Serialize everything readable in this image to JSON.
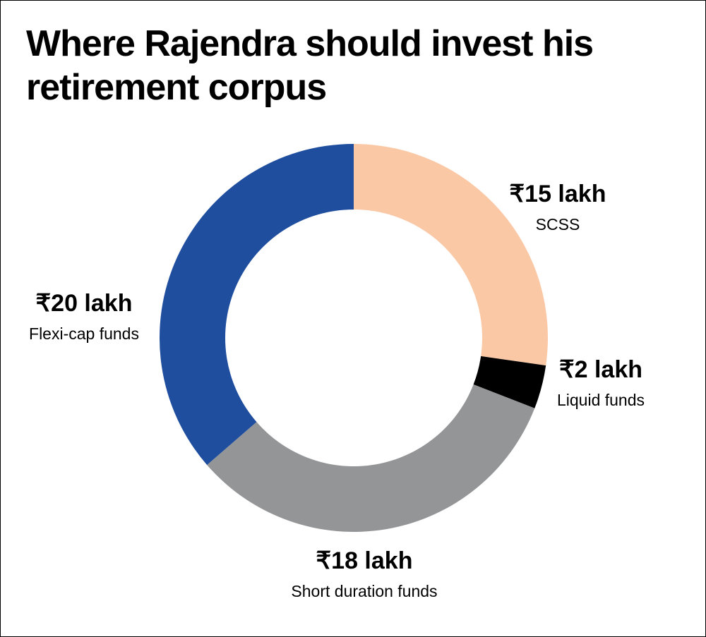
{
  "page": {
    "title": "Where Rajendra should invest his retirement corpus"
  },
  "chart_data": {
    "type": "pie",
    "title": "Where Rajendra should invest his retirement corpus",
    "unit": "lakh",
    "currency_symbol": "₹",
    "start_angle_deg": 0,
    "direction": "clockwise",
    "donut": true,
    "slices": [
      {
        "name": "SCSS",
        "value": 15,
        "value_label": "₹15 lakh",
        "color": "#fbc8a6"
      },
      {
        "name": "Liquid funds",
        "value": 2,
        "value_label": "₹2 lakh",
        "color": "#000000"
      },
      {
        "name": "Short duration funds",
        "value": 18,
        "value_label": "₹18 lakh",
        "color": "#939597"
      },
      {
        "name": "Flexi-cap funds",
        "value": 20,
        "value_label": "₹20 lakh",
        "color": "#1f4e9f"
      }
    ]
  }
}
